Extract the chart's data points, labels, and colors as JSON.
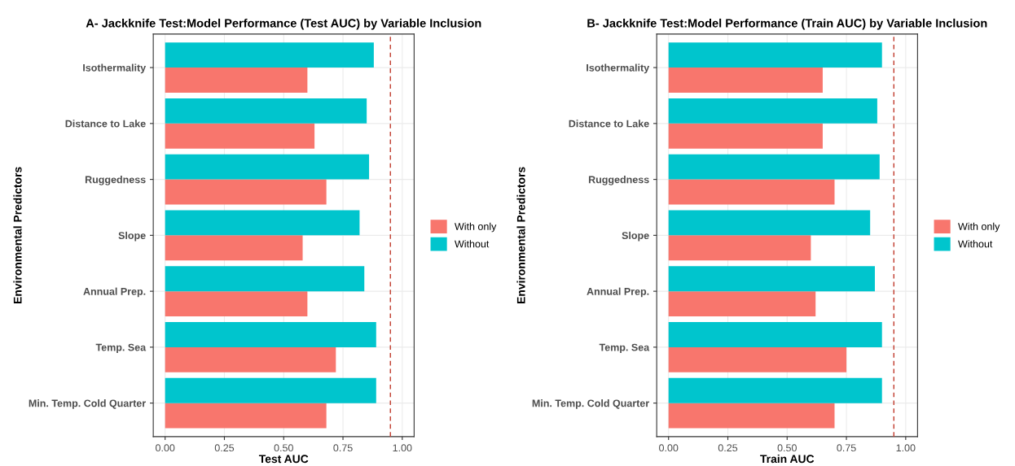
{
  "chart_data": [
    {
      "type": "bar",
      "orientation": "horizontal",
      "title": "A- Jackknife Test:Model Performance (Test AUC) by Variable Inclusion",
      "xlabel": "Test AUC",
      "ylabel": "Environmental Predictors",
      "categories": [
        "Isothermality",
        "Distance to Lake",
        "Ruggedness",
        "Slope",
        "Annual Prep.",
        "Temp. Sea",
        "Min. Temp. Cold Quarter"
      ],
      "series": [
        {
          "name": "With only",
          "color": "#f8766d",
          "values": [
            0.6,
            0.63,
            0.68,
            0.58,
            0.6,
            0.72,
            0.68
          ]
        },
        {
          "name": "Without",
          "color": "#00c5cd",
          "values": [
            0.88,
            0.85,
            0.86,
            0.82,
            0.84,
            0.89,
            0.89
          ]
        }
      ],
      "xlim": [
        -0.05,
        1.05
      ],
      "xticks": [
        {
          "value": 0,
          "label": "0.00"
        },
        {
          "value": 0.25,
          "label": "0.25"
        },
        {
          "value": 0.5,
          "label": "0.50"
        },
        {
          "value": 0.75,
          "label": "0.75"
        },
        {
          "value": 1,
          "label": "1.00"
        }
      ],
      "ref_lines": [
        {
          "axis": "x",
          "value": 0.95,
          "color": "#c0392b",
          "line_style": "dashed"
        }
      ],
      "grid": true,
      "legend": "right"
    },
    {
      "type": "bar",
      "orientation": "horizontal",
      "title": "B- Jackknife Test:Model Performance (Train AUC) by Variable Inclusion",
      "xlabel": "Train AUC",
      "ylabel": "Environmental Predictors",
      "categories": [
        "Isothermality",
        "Distance to Lake",
        "Ruggedness",
        "Slope",
        "Annual Prep.",
        "Temp. Sea",
        "Min. Temp. Cold Quarter"
      ],
      "series": [
        {
          "name": "With only",
          "color": "#f8766d",
          "values": [
            0.65,
            0.65,
            0.7,
            0.6,
            0.62,
            0.75,
            0.7
          ]
        },
        {
          "name": "Without",
          "color": "#00c5cd",
          "values": [
            0.9,
            0.88,
            0.89,
            0.85,
            0.87,
            0.9,
            0.9
          ]
        }
      ],
      "xlim": [
        -0.05,
        1.05
      ],
      "xticks": [
        {
          "value": 0,
          "label": "0.00"
        },
        {
          "value": 0.25,
          "label": "0.25"
        },
        {
          "value": 0.5,
          "label": "0.50"
        },
        {
          "value": 0.75,
          "label": "0.75"
        },
        {
          "value": 1,
          "label": "1.00"
        }
      ],
      "ref_lines": [
        {
          "axis": "x",
          "value": 0.95,
          "color": "#c0392b",
          "line_style": "dashed"
        }
      ],
      "grid": true,
      "legend": "right"
    }
  ]
}
